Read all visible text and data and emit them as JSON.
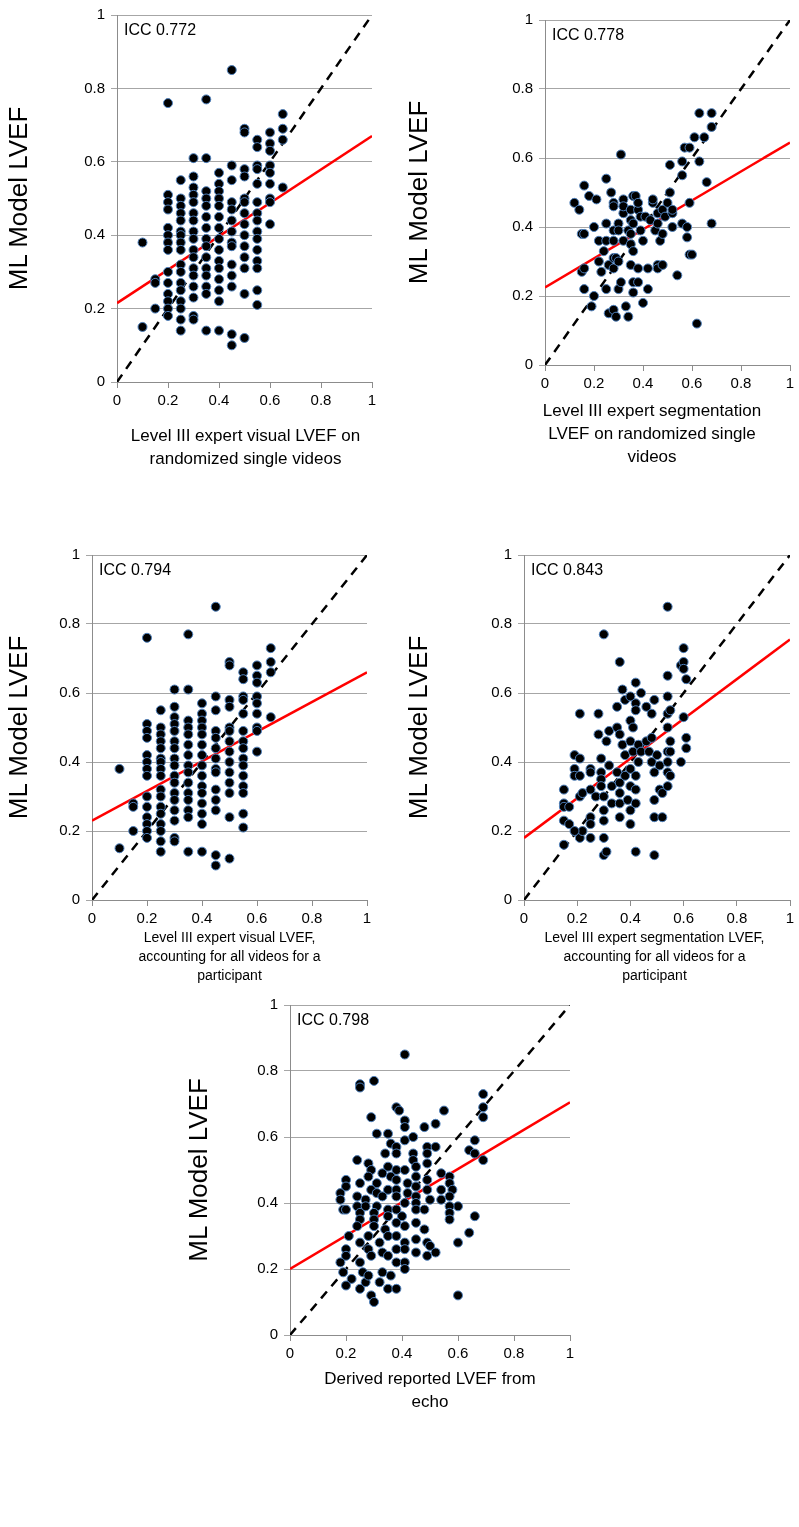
{
  "chart_data": [
    {
      "type": "scatter",
      "xlabel": "Level III expert visual LVEF on randomized single videos",
      "ylabel": "ML Model LVEF",
      "annotations": [
        "ICC 0.772"
      ],
      "xlim": [
        0,
        1
      ],
      "ylim": [
        0,
        1
      ],
      "xticks": [
        0,
        0.2,
        0.4,
        0.6,
        0.8,
        1
      ],
      "yticks": [
        0,
        0.2,
        0.4,
        0.6,
        0.8,
        1
      ],
      "grid": "y",
      "series": [
        {
          "type": "scatter",
          "color": "#000000",
          "marker": "circle",
          "x": [
            0.1,
            0.1,
            0.15,
            0.15,
            0.15,
            0.2,
            0.2,
            0.2,
            0.2,
            0.2,
            0.2,
            0.2,
            0.2,
            0.2,
            0.2,
            0.2,
            0.2,
            0.2,
            0.2,
            0.25,
            0.25,
            0.25,
            0.25,
            0.25,
            0.25,
            0.25,
            0.25,
            0.25,
            0.25,
            0.25,
            0.25,
            0.25,
            0.25,
            0.25,
            0.25,
            0.25,
            0.3,
            0.3,
            0.3,
            0.3,
            0.3,
            0.3,
            0.3,
            0.3,
            0.3,
            0.3,
            0.3,
            0.3,
            0.3,
            0.3,
            0.3,
            0.3,
            0.3,
            0.35,
            0.35,
            0.35,
            0.35,
            0.35,
            0.35,
            0.35,
            0.35,
            0.35,
            0.35,
            0.35,
            0.35,
            0.35,
            0.35,
            0.35,
            0.4,
            0.4,
            0.4,
            0.4,
            0.4,
            0.4,
            0.4,
            0.4,
            0.4,
            0.4,
            0.4,
            0.4,
            0.4,
            0.4,
            0.4,
            0.45,
            0.45,
            0.45,
            0.45,
            0.45,
            0.45,
            0.45,
            0.45,
            0.45,
            0.45,
            0.45,
            0.45,
            0.45,
            0.45,
            0.5,
            0.5,
            0.5,
            0.5,
            0.5,
            0.5,
            0.5,
            0.5,
            0.5,
            0.5,
            0.5,
            0.5,
            0.5,
            0.5,
            0.55,
            0.55,
            0.55,
            0.55,
            0.55,
            0.55,
            0.55,
            0.55,
            0.55,
            0.55,
            0.55,
            0.55,
            0.55,
            0.55,
            0.55,
            0.6,
            0.6,
            0.6,
            0.6,
            0.6,
            0.6,
            0.6,
            0.6,
            0.6,
            0.65,
            0.65,
            0.65,
            0.65
          ],
          "values": [
            0.38,
            0.15,
            0.28,
            0.27,
            0.2,
            0.76,
            0.51,
            0.49,
            0.47,
            0.42,
            0.4,
            0.38,
            0.36,
            0.3,
            0.27,
            0.24,
            0.22,
            0.2,
            0.18,
            0.55,
            0.5,
            0.48,
            0.46,
            0.44,
            0.41,
            0.4,
            0.38,
            0.36,
            0.32,
            0.3,
            0.27,
            0.25,
            0.22,
            0.2,
            0.17,
            0.14,
            0.61,
            0.56,
            0.53,
            0.51,
            0.49,
            0.46,
            0.44,
            0.41,
            0.39,
            0.36,
            0.34,
            0.31,
            0.29,
            0.26,
            0.23,
            0.18,
            0.17,
            0.77,
            0.61,
            0.52,
            0.5,
            0.48,
            0.45,
            0.42,
            0.39,
            0.37,
            0.34,
            0.31,
            0.29,
            0.26,
            0.24,
            0.14,
            0.57,
            0.54,
            0.52,
            0.5,
            0.48,
            0.45,
            0.42,
            0.39,
            0.36,
            0.33,
            0.31,
            0.28,
            0.25,
            0.22,
            0.14,
            0.85,
            0.59,
            0.55,
            0.49,
            0.47,
            0.44,
            0.41,
            0.38,
            0.37,
            0.32,
            0.29,
            0.26,
            0.13,
            0.1,
            0.69,
            0.68,
            0.58,
            0.56,
            0.5,
            0.49,
            0.46,
            0.43,
            0.4,
            0.37,
            0.34,
            0.31,
            0.24,
            0.12,
            0.66,
            0.64,
            0.59,
            0.58,
            0.54,
            0.49,
            0.46,
            0.44,
            0.41,
            0.39,
            0.36,
            0.33,
            0.31,
            0.25,
            0.21,
            0.68,
            0.65,
            0.63,
            0.59,
            0.57,
            0.54,
            0.5,
            0.49,
            0.43,
            0.73,
            0.69,
            0.66,
            0.53
          ]
        },
        {
          "type": "line",
          "color": "#ff0000",
          "marker": "none",
          "x": [
            0,
            1
          ],
          "values": [
            0.215,
            0.67
          ]
        },
        {
          "type": "line",
          "color": "#000000",
          "marker": "none",
          "line_style": "dashed",
          "x": [
            0,
            1
          ],
          "values": [
            0,
            1
          ]
        }
      ]
    },
    {
      "type": "scatter",
      "xlabel": "Level III expert segmentation LVEF on randomized single videos",
      "ylabel": "ML Model LVEF",
      "annotations": [
        "ICC 0.778"
      ],
      "xlim": [
        0,
        1
      ],
      "ylim": [
        0,
        1
      ],
      "xticks": [
        0,
        0.2,
        0.4,
        0.6,
        0.8,
        1
      ],
      "yticks": [
        0,
        0.2,
        0.4,
        0.6,
        0.8,
        1
      ],
      "grid": "y",
      "series": [
        {
          "type": "scatter",
          "color": "#000000",
          "marker": "circle",
          "x": [
            0.12,
            0.14,
            0.16,
            0.18,
            0.21,
            0.15,
            0.16,
            0.2,
            0.15,
            0.16,
            0.16,
            0.2,
            0.19,
            0.22,
            0.22,
            0.23,
            0.24,
            0.25,
            0.25,
            0.25,
            0.26,
            0.25,
            0.26,
            0.27,
            0.28,
            0.28,
            0.28,
            0.28,
            0.28,
            0.28,
            0.29,
            0.28,
            0.29,
            0.3,
            0.3,
            0.3,
            0.3,
            0.31,
            0.31,
            0.32,
            0.32,
            0.32,
            0.32,
            0.33,
            0.34,
            0.34,
            0.35,
            0.35,
            0.35,
            0.35,
            0.35,
            0.36,
            0.36,
            0.36,
            0.36,
            0.36,
            0.37,
            0.38,
            0.38,
            0.38,
            0.38,
            0.39,
            0.39,
            0.4,
            0.4,
            0.41,
            0.42,
            0.42,
            0.43,
            0.44,
            0.44,
            0.45,
            0.46,
            0.46,
            0.46,
            0.46,
            0.47,
            0.48,
            0.48,
            0.48,
            0.49,
            0.5,
            0.51,
            0.51,
            0.52,
            0.52,
            0.52,
            0.54,
            0.56,
            0.56,
            0.56,
            0.57,
            0.58,
            0.58,
            0.59,
            0.59,
            0.59,
            0.6,
            0.61,
            0.62,
            0.63,
            0.63,
            0.65,
            0.66,
            0.68,
            0.68,
            0.68
          ],
          "values": [
            0.47,
            0.45,
            0.52,
            0.49,
            0.48,
            0.38,
            0.38,
            0.4,
            0.27,
            0.28,
            0.22,
            0.2,
            0.17,
            0.36,
            0.3,
            0.27,
            0.33,
            0.36,
            0.41,
            0.54,
            0.29,
            0.22,
            0.15,
            0.5,
            0.47,
            0.46,
            0.39,
            0.36,
            0.31,
            0.28,
            0.31,
            0.16,
            0.14,
            0.41,
            0.39,
            0.3,
            0.22,
            0.24,
            0.61,
            0.48,
            0.44,
            0.36,
            0.46,
            0.17,
            0.14,
            0.39,
            0.42,
            0.45,
            0.38,
            0.35,
            0.29,
            0.49,
            0.33,
            0.41,
            0.24,
            0.21,
            0.49,
            0.45,
            0.47,
            0.28,
            0.24,
            0.43,
            0.39,
            0.36,
            0.18,
            0.43,
            0.28,
            0.22,
            0.42,
            0.47,
            0.48,
            0.39,
            0.44,
            0.29,
            0.28,
            0.41,
            0.36,
            0.45,
            0.38,
            0.29,
            0.43,
            0.47,
            0.5,
            0.58,
            0.4,
            0.44,
            0.45,
            0.26,
            0.41,
            0.55,
            0.59,
            0.63,
            0.4,
            0.37,
            0.63,
            0.32,
            0.47,
            0.32,
            0.66,
            0.12,
            0.73,
            0.59,
            0.66,
            0.53,
            0.73,
            0.69,
            0.41
          ]
        },
        {
          "type": "line",
          "color": "#ff0000",
          "marker": "none",
          "x": [
            0,
            1
          ],
          "values": [
            0.225,
            0.645
          ]
        },
        {
          "type": "line",
          "color": "#000000",
          "marker": "none",
          "line_style": "dashed",
          "x": [
            0,
            1
          ],
          "values": [
            0,
            1
          ]
        }
      ]
    },
    {
      "type": "scatter",
      "xlabel": "Level III expert visual LVEF, accounting for all videos for a participant",
      "ylabel": "ML Model LVEF",
      "annotations": [
        "ICC 0.794"
      ],
      "xlim": [
        0,
        1
      ],
      "ylim": [
        0,
        1
      ],
      "xticks": [
        0,
        0.2,
        0.4,
        0.6,
        0.8,
        1
      ],
      "yticks": [
        0,
        0.2,
        0.4,
        0.6,
        0.8,
        1
      ],
      "grid": "y",
      "series": [
        {
          "type": "scatter",
          "color": "#000000",
          "marker": "circle",
          "x": [
            0.1,
            0.1,
            0.15,
            0.15,
            0.15,
            0.2,
            0.2,
            0.2,
            0.2,
            0.2,
            0.2,
            0.2,
            0.2,
            0.2,
            0.2,
            0.2,
            0.2,
            0.2,
            0.2,
            0.25,
            0.25,
            0.25,
            0.25,
            0.25,
            0.25,
            0.25,
            0.25,
            0.25,
            0.25,
            0.25,
            0.25,
            0.25,
            0.25,
            0.25,
            0.25,
            0.25,
            0.3,
            0.3,
            0.3,
            0.3,
            0.3,
            0.3,
            0.3,
            0.3,
            0.3,
            0.3,
            0.3,
            0.3,
            0.3,
            0.3,
            0.3,
            0.3,
            0.3,
            0.35,
            0.35,
            0.35,
            0.35,
            0.35,
            0.35,
            0.35,
            0.35,
            0.35,
            0.35,
            0.35,
            0.35,
            0.35,
            0.35,
            0.35,
            0.4,
            0.4,
            0.4,
            0.4,
            0.4,
            0.4,
            0.4,
            0.4,
            0.4,
            0.4,
            0.4,
            0.4,
            0.4,
            0.4,
            0.4,
            0.45,
            0.45,
            0.45,
            0.45,
            0.45,
            0.45,
            0.45,
            0.45,
            0.45,
            0.45,
            0.45,
            0.45,
            0.45,
            0.45,
            0.5,
            0.5,
            0.5,
            0.5,
            0.5,
            0.5,
            0.5,
            0.5,
            0.5,
            0.5,
            0.5,
            0.5,
            0.5,
            0.5,
            0.55,
            0.55,
            0.55,
            0.55,
            0.55,
            0.55,
            0.55,
            0.55,
            0.55,
            0.55,
            0.55,
            0.55,
            0.55,
            0.55,
            0.55,
            0.6,
            0.6,
            0.6,
            0.6,
            0.6,
            0.6,
            0.6,
            0.6,
            0.6,
            0.65,
            0.65,
            0.65,
            0.65
          ],
          "values": [
            0.38,
            0.15,
            0.28,
            0.27,
            0.2,
            0.76,
            0.51,
            0.49,
            0.47,
            0.42,
            0.4,
            0.38,
            0.36,
            0.3,
            0.27,
            0.24,
            0.22,
            0.2,
            0.18,
            0.55,
            0.5,
            0.48,
            0.46,
            0.44,
            0.41,
            0.4,
            0.38,
            0.36,
            0.32,
            0.3,
            0.27,
            0.25,
            0.22,
            0.2,
            0.17,
            0.14,
            0.61,
            0.56,
            0.53,
            0.51,
            0.49,
            0.46,
            0.44,
            0.41,
            0.39,
            0.36,
            0.34,
            0.31,
            0.29,
            0.26,
            0.23,
            0.18,
            0.17,
            0.77,
            0.61,
            0.52,
            0.5,
            0.48,
            0.45,
            0.42,
            0.39,
            0.37,
            0.34,
            0.31,
            0.29,
            0.26,
            0.24,
            0.14,
            0.57,
            0.54,
            0.52,
            0.5,
            0.48,
            0.45,
            0.42,
            0.39,
            0.36,
            0.33,
            0.31,
            0.28,
            0.25,
            0.22,
            0.14,
            0.85,
            0.59,
            0.55,
            0.49,
            0.47,
            0.44,
            0.41,
            0.38,
            0.37,
            0.32,
            0.29,
            0.26,
            0.13,
            0.1,
            0.69,
            0.68,
            0.58,
            0.56,
            0.5,
            0.49,
            0.46,
            0.43,
            0.4,
            0.37,
            0.34,
            0.31,
            0.24,
            0.12,
            0.66,
            0.64,
            0.59,
            0.58,
            0.54,
            0.49,
            0.46,
            0.44,
            0.41,
            0.39,
            0.36,
            0.33,
            0.31,
            0.25,
            0.21,
            0.68,
            0.65,
            0.63,
            0.59,
            0.57,
            0.54,
            0.5,
            0.49,
            0.43,
            0.73,
            0.69,
            0.66,
            0.53
          ]
        },
        {
          "type": "line",
          "color": "#ff0000",
          "marker": "none",
          "x": [
            0,
            1
          ],
          "values": [
            0.23,
            0.66
          ]
        },
        {
          "type": "line",
          "color": "#000000",
          "marker": "none",
          "line_style": "dashed",
          "x": [
            0,
            1
          ],
          "values": [
            0,
            1
          ]
        }
      ]
    },
    {
      "type": "scatter",
      "xlabel": "Level III expert segmentation LVEF, accounting for all videos for a participant",
      "ylabel": "ML Model LVEF",
      "annotations": [
        "ICC 0.843"
      ],
      "xlim": [
        0,
        1
      ],
      "ylim": [
        0,
        1
      ],
      "xticks": [
        0,
        0.2,
        0.4,
        0.6,
        0.8,
        1
      ],
      "yticks": [
        0,
        0.2,
        0.4,
        0.6,
        0.8,
        1
      ],
      "grid": "y",
      "series": [
        {
          "type": "scatter",
          "color": "#000000",
          "marker": "circle",
          "x": [
            0.15,
            0.15,
            0.15,
            0.17,
            0.15,
            0.15,
            0.17,
            0.19,
            0.19,
            0.19,
            0.21,
            0.21,
            0.21,
            0.21,
            0.22,
            0.21,
            0.22,
            0.19,
            0.25,
            0.25,
            0.25,
            0.25,
            0.25,
            0.25,
            0.28,
            0.28,
            0.27,
            0.29,
            0.29,
            0.29,
            0.29,
            0.3,
            0.3,
            0.3,
            0.3,
            0.3,
            0.31,
            0.3,
            0.31,
            0.32,
            0.32,
            0.33,
            0.33,
            0.35,
            0.35,
            0.35,
            0.36,
            0.36,
            0.36,
            0.36,
            0.36,
            0.36,
            0.37,
            0.37,
            0.38,
            0.38,
            0.38,
            0.39,
            0.4,
            0.4,
            0.4,
            0.4,
            0.4,
            0.4,
            0.4,
            0.41,
            0.41,
            0.42,
            0.42,
            0.42,
            0.42,
            0.42,
            0.42,
            0.42,
            0.43,
            0.43,
            0.44,
            0.44,
            0.46,
            0.46,
            0.47,
            0.48,
            0.48,
            0.48,
            0.49,
            0.49,
            0.49,
            0.49,
            0.49,
            0.5,
            0.51,
            0.51,
            0.52,
            0.52,
            0.54,
            0.54,
            0.54,
            0.54,
            0.54,
            0.54,
            0.54,
            0.54,
            0.54,
            0.55,
            0.55,
            0.55,
            0.55,
            0.59,
            0.59,
            0.6,
            0.6,
            0.6,
            0.6,
            0.61,
            0.61,
            0.61
          ],
          "values": [
            0.32,
            0.28,
            0.27,
            0.27,
            0.23,
            0.16,
            0.22,
            0.42,
            0.38,
            0.36,
            0.54,
            0.41,
            0.36,
            0.3,
            0.31,
            0.18,
            0.2,
            0.2,
            0.38,
            0.37,
            0.32,
            0.24,
            0.22,
            0.18,
            0.54,
            0.48,
            0.3,
            0.41,
            0.37,
            0.35,
            0.33,
            0.3,
            0.26,
            0.23,
            0.18,
            0.13,
            0.14,
            0.77,
            0.46,
            0.49,
            0.39,
            0.33,
            0.28,
            0.5,
            0.56,
            0.37,
            0.69,
            0.48,
            0.34,
            0.31,
            0.28,
            0.24,
            0.61,
            0.45,
            0.58,
            0.42,
            0.36,
            0.29,
            0.52,
            0.59,
            0.46,
            0.38,
            0.33,
            0.26,
            0.22,
            0.5,
            0.43,
            0.36,
            0.28,
            0.14,
            0.63,
            0.57,
            0.55,
            0.32,
            0.4,
            0.45,
            0.43,
            0.6,
            0.56,
            0.46,
            0.43,
            0.54,
            0.47,
            0.4,
            0.29,
            0.24,
            0.37,
            0.13,
            0.58,
            0.42,
            0.39,
            0.32,
            0.31,
            0.24,
            0.85,
            0.65,
            0.59,
            0.54,
            0.5,
            0.43,
            0.4,
            0.37,
            0.33,
            0.55,
            0.46,
            0.43,
            0.36,
            0.4,
            0.68,
            0.73,
            0.69,
            0.67,
            0.53,
            0.64,
            0.47,
            0.44
          ]
        },
        {
          "type": "line",
          "color": "#ff0000",
          "marker": "none",
          "x": [
            0,
            1
          ],
          "values": [
            0.18,
            0.755
          ]
        },
        {
          "type": "line",
          "color": "#000000",
          "marker": "none",
          "line_style": "dashed",
          "x": [
            0,
            1
          ],
          "values": [
            0,
            1
          ]
        }
      ]
    },
    {
      "type": "scatter",
      "xlabel": "Derived reported LVEF from echo",
      "ylabel": "ML Model LVEF",
      "annotations": [
        "ICC 0.798"
      ],
      "xlim": [
        0,
        1
      ],
      "ylim": [
        0,
        1
      ],
      "xticks": [
        0,
        0.2,
        0.4,
        0.6,
        0.8,
        1
      ],
      "yticks": [
        0,
        0.2,
        0.4,
        0.6,
        0.8,
        1
      ],
      "grid": "y",
      "series": [
        {
          "type": "scatter",
          "color": "#000000",
          "marker": "circle",
          "x": [
            0.41,
            0.25,
            0.25,
            0.3,
            0.38,
            0.39,
            0.55,
            0.69,
            0.69,
            0.69,
            0.29,
            0.41,
            0.41,
            0.48,
            0.52,
            0.31,
            0.35,
            0.41,
            0.44,
            0.36,
            0.38,
            0.49,
            0.52,
            0.66,
            0.64,
            0.66,
            0.69,
            0.34,
            0.38,
            0.44,
            0.24,
            0.44,
            0.49,
            0.49,
            0.28,
            0.35,
            0.45,
            0.29,
            0.38,
            0.41,
            0.33,
            0.54,
            0.57,
            0.28,
            0.36,
            0.2,
            0.38,
            0.45,
            0.49,
            0.2,
            0.25,
            0.31,
            0.42,
            0.57,
            0.29,
            0.35,
            0.38,
            0.45,
            0.49,
            0.54,
            0.58,
            0.18,
            0.24,
            0.31,
            0.42,
            0.18,
            0.27,
            0.33,
            0.38,
            0.45,
            0.5,
            0.54,
            0.57,
            0.6,
            0.24,
            0.31,
            0.41,
            0.45,
            0.19,
            0.27,
            0.35,
            0.38,
            0.57,
            0.2,
            0.25,
            0.3,
            0.35,
            0.4,
            0.45,
            0.48,
            0.57,
            0.57,
            0.66,
            0.25,
            0.3,
            0.38,
            0.45,
            0.24,
            0.3,
            0.34,
            0.41,
            0.48,
            0.64,
            0.21,
            0.28,
            0.35,
            0.38,
            0.45,
            0.25,
            0.32,
            0.41,
            0.49,
            0.6,
            0.2,
            0.28,
            0.33,
            0.38,
            0.41,
            0.45,
            0.5,
            0.2,
            0.29,
            0.35,
            0.49,
            0.52,
            0.18,
            0.25,
            0.38,
            0.41,
            0.19,
            0.22,
            0.25,
            0.27,
            0.29,
            0.3,
            0.32,
            0.35,
            0.38,
            0.6,
            0.2,
            0.26,
            0.33,
            0.36,
            0.41,
            0.28
          ],
          "values": [
            0.85,
            0.76,
            0.75,
            0.77,
            0.69,
            0.68,
            0.68,
            0.73,
            0.69,
            0.66,
            0.66,
            0.65,
            0.63,
            0.63,
            0.64,
            0.61,
            0.61,
            0.59,
            0.6,
            0.58,
            0.57,
            0.57,
            0.57,
            0.59,
            0.56,
            0.55,
            0.53,
            0.55,
            0.55,
            0.55,
            0.53,
            0.53,
            0.55,
            0.52,
            0.52,
            0.51,
            0.51,
            0.5,
            0.5,
            0.5,
            0.49,
            0.49,
            0.48,
            0.48,
            0.48,
            0.47,
            0.47,
            0.48,
            0.47,
            0.45,
            0.46,
            0.46,
            0.46,
            0.46,
            0.44,
            0.44,
            0.44,
            0.45,
            0.44,
            0.44,
            0.44,
            0.43,
            0.42,
            0.43,
            0.43,
            0.41,
            0.41,
            0.42,
            0.42,
            0.42,
            0.41,
            0.41,
            0.42,
            0.39,
            0.39,
            0.39,
            0.4,
            0.4,
            0.38,
            0.39,
            0.38,
            0.38,
            0.39,
            0.38,
            0.37,
            0.37,
            0.36,
            0.36,
            0.38,
            0.38,
            0.37,
            0.35,
            0.36,
            0.35,
            0.35,
            0.34,
            0.34,
            0.33,
            0.33,
            0.32,
            0.33,
            0.32,
            0.31,
            0.3,
            0.3,
            0.3,
            0.3,
            0.29,
            0.28,
            0.28,
            0.28,
            0.28,
            0.28,
            0.26,
            0.26,
            0.25,
            0.26,
            0.26,
            0.25,
            0.27,
            0.24,
            0.24,
            0.24,
            0.24,
            0.25,
            0.22,
            0.22,
            0.22,
            0.22,
            0.19,
            0.17,
            0.14,
            0.16,
            0.12,
            0.1,
            0.16,
            0.14,
            0.14,
            0.12,
            0.15,
            0.19,
            0.19,
            0.18,
            0.2,
            0.18
          ]
        },
        {
          "type": "line",
          "color": "#ff0000",
          "marker": "none",
          "x": [
            0,
            1
          ],
          "values": [
            0.2,
            0.705
          ]
        },
        {
          "type": "line",
          "color": "#000000",
          "marker": "none",
          "line_style": "dashed",
          "x": [
            0,
            1
          ],
          "values": [
            0,
            1
          ]
        }
      ]
    }
  ]
}
